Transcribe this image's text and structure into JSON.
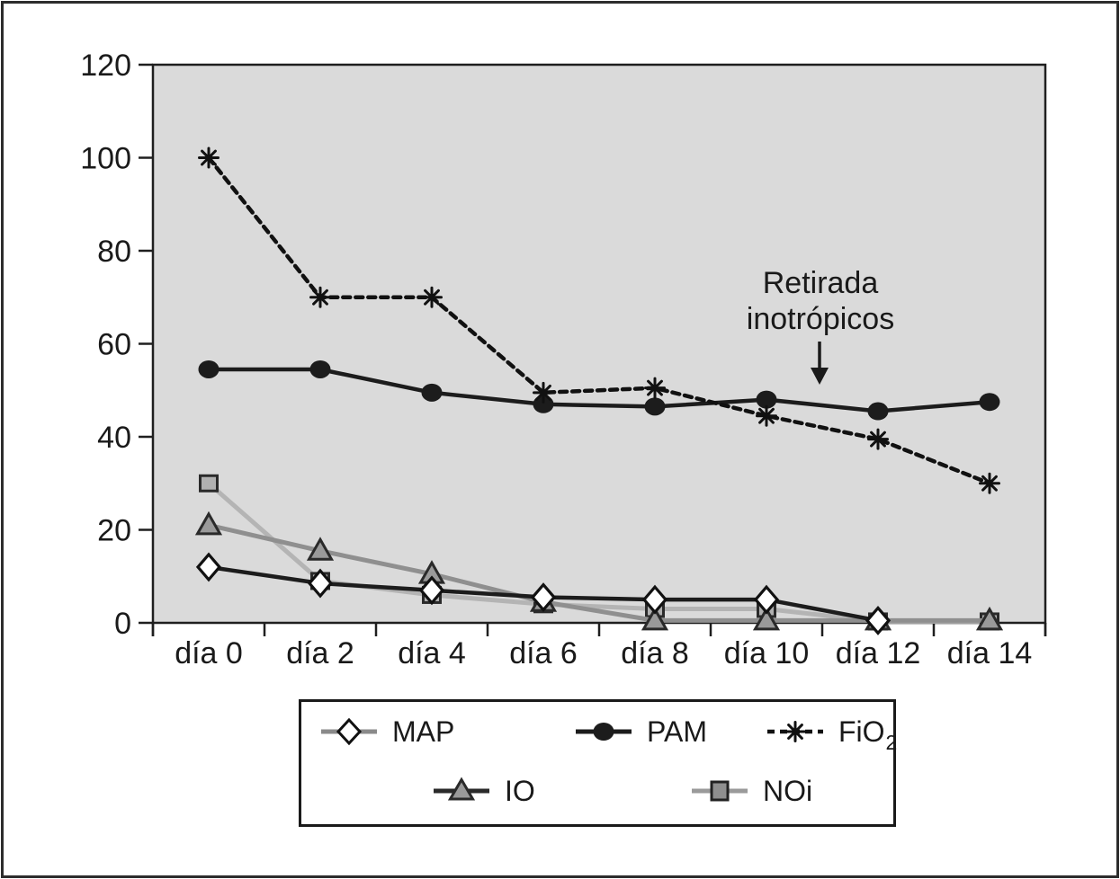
{
  "figure": {
    "background": "#ffffff",
    "border_color": "#2d2d2d"
  },
  "chart_data": {
    "type": "line",
    "title": "",
    "xlabel": "",
    "ylabel": "",
    "categories": [
      "día 0",
      "día 2",
      "día 4",
      "día 6",
      "día 8",
      "día 10",
      "día 12",
      "día 14"
    ],
    "yticks": [
      0,
      20,
      40,
      60,
      80,
      100,
      120
    ],
    "ylim": [
      0,
      120
    ],
    "grid": false,
    "plot_bg": "#dadada",
    "axis_color": "#1f1f1f",
    "legend_position": "bottom",
    "annotation": {
      "line1": "Retirada",
      "line2": "inotrópicos"
    },
    "series": [
      {
        "name": "NOi",
        "values": [
          30,
          9,
          6,
          4,
          3,
          3,
          0.3,
          0.3
        ],
        "line_color": "#b4b4b4",
        "line_width": 5,
        "marker": "square",
        "marker_fill": "#b0b0b0",
        "marker_stroke": "#2a2a2a"
      },
      {
        "name": "IO",
        "values": [
          21,
          15.5,
          10.5,
          4.5,
          0.5,
          0.5,
          0.5,
          0.5
        ],
        "line_color": "#8f8f8f",
        "line_width": 5,
        "marker": "triangle",
        "marker_fill": "#9a9a9a",
        "marker_stroke": "#2a2a2a"
      },
      {
        "name": "MAP",
        "values": [
          12,
          8.5,
          7,
          5.5,
          5,
          5,
          0.5,
          null
        ],
        "line_color": "#1c1c1c",
        "line_width": 4.5,
        "marker": "diamond",
        "marker_fill": "#ffffff",
        "marker_stroke": "#111111"
      },
      {
        "name": "PAM",
        "values": [
          54.5,
          54.5,
          49.5,
          47,
          46.5,
          48,
          45.5,
          47.5
        ],
        "line_color": "#1c1c1c",
        "line_width": 4.5,
        "marker": "circle",
        "marker_fill": "#1c1c1c",
        "marker_stroke": "#1c1c1c"
      },
      {
        "name": "FiO2",
        "values": [
          100,
          70,
          70,
          49.5,
          50.5,
          44.5,
          39.5,
          30
        ],
        "line_color": "#111111",
        "line_width": 4.5,
        "dash": "8 6",
        "marker": "asterisk",
        "marker_fill": "#111111",
        "marker_stroke": "#111111"
      }
    ]
  },
  "legend": {
    "map_label": "MAP",
    "pam_label": "PAM",
    "fio2_label_main": "FiO",
    "fio2_label_sub": "2",
    "io_label": "IO",
    "noi_label": "NOi"
  }
}
